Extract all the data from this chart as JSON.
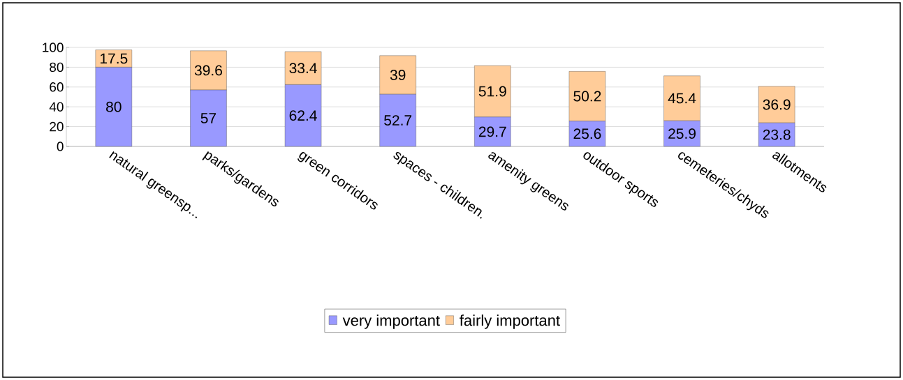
{
  "chart_data": {
    "type": "bar",
    "stacked": true,
    "categories": [
      "natural greensp...",
      "parks/gardens",
      "green corridors",
      "spaces - children.",
      "amenity greens",
      "outdoor sports",
      "cemeteries/chyds",
      "allotments"
    ],
    "series": [
      {
        "name": "very important",
        "color": "#9999ff",
        "values": [
          80,
          57,
          62.4,
          52.7,
          29.7,
          25.6,
          25.9,
          23.8
        ]
      },
      {
        "name": "fairly important",
        "color": "#ffcc99",
        "values": [
          17.5,
          39.6,
          33.4,
          39,
          51.9,
          50.2,
          45.4,
          36.9
        ]
      }
    ],
    "ylim": [
      0,
      100
    ],
    "yticks": [
      0,
      20,
      40,
      60,
      80,
      100
    ],
    "grid": "y",
    "legend": "bottom",
    "data_labels": true
  }
}
